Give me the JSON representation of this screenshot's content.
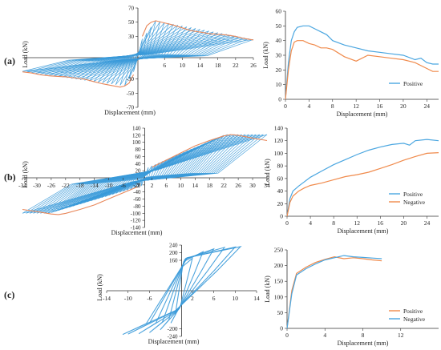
{
  "colors": {
    "hysteresis": "#3a9ad9",
    "envelope": "#e8875a",
    "positive_b": "#4aa6e0",
    "negative_b": "#f08a4b",
    "axis": "#222222"
  },
  "panels": [
    {
      "label": "(a)"
    },
    {
      "label": "(b)"
    },
    {
      "label": "(c)"
    }
  ],
  "chart_data": [
    {
      "id": "a-hysteresis",
      "type": "line",
      "xlabel": "Displacement (mm)",
      "ylabel": "Load (kN)",
      "xticks": [
        "6",
        "10",
        "14",
        "18",
        "22",
        "26"
      ],
      "xlim": [
        -26,
        26
      ],
      "yticks": [
        "70",
        "50",
        "30",
        "-30",
        "-50",
        "-70"
      ],
      "ylim": [
        -70,
        70
      ],
      "envelope": {
        "x": [
          1,
          2,
          3,
          4,
          6,
          8,
          10,
          12,
          14,
          16,
          18,
          20,
          22,
          24,
          26
        ],
        "y": [
          30,
          45,
          50,
          52,
          49,
          46,
          42,
          38,
          36,
          34,
          33,
          32,
          30,
          27,
          25
        ]
      }
    },
    {
      "id": "a-envelope",
      "type": "line",
      "xlabel": "Displacement (mm)",
      "ylabel": "Load (kN)",
      "xticks": [
        "0",
        "4",
        "8",
        "12",
        "16",
        "20",
        "24"
      ],
      "xlim": [
        0,
        26
      ],
      "yticks": [
        "0",
        "10",
        "20",
        "30",
        "40",
        "50",
        "60"
      ],
      "ylim": [
        0,
        60
      ],
      "series": [
        {
          "name": "Positive",
          "x": [
            0,
            0.5,
            1,
            1.5,
            2,
            3,
            4,
            5,
            6,
            7,
            8,
            10,
            12,
            14,
            16,
            18,
            20,
            22,
            23,
            24,
            25,
            26
          ],
          "y": [
            0,
            25,
            40,
            46,
            49,
            50,
            50,
            48,
            46,
            44,
            40,
            37,
            35,
            33,
            32,
            31,
            30,
            27,
            28,
            25,
            24,
            24
          ]
        },
        {
          "name": "",
          "x": [
            0,
            0.5,
            1,
            1.5,
            2,
            3,
            4,
            5,
            6,
            7,
            8,
            10,
            12,
            14,
            16,
            18,
            20,
            22,
            24,
            25,
            26
          ],
          "y": [
            0,
            20,
            33,
            39,
            40,
            40,
            38,
            37,
            35,
            35,
            34,
            29,
            26,
            30,
            29,
            28,
            27,
            25,
            21,
            19,
            19
          ]
        }
      ]
    },
    {
      "id": "b-hysteresis",
      "type": "line",
      "xlabel": "Displacement (mm)",
      "ylabel": "Load (kN)",
      "xticks": [
        "-34",
        "-30",
        "-26",
        "-22",
        "-18",
        "-14",
        "-10",
        "-6",
        "-2",
        "2",
        "6",
        "10",
        "14",
        "18",
        "22",
        "26",
        "30",
        "34"
      ],
      "xlim": [
        -34,
        34
      ],
      "yticks": [
        "140",
        "120",
        "100",
        "80",
        "60",
        "40",
        "20",
        "-20",
        "-40",
        "-60",
        "-80",
        "-100",
        "-120",
        "-140"
      ],
      "ylim": [
        -140,
        140
      ],
      "envelope": {
        "x": [
          2,
          6,
          10,
          14,
          18,
          22,
          24,
          26,
          30,
          34
        ],
        "y": [
          30,
          50,
          70,
          90,
          105,
          118,
          122,
          120,
          112,
          105
        ]
      }
    },
    {
      "id": "b-envelope",
      "type": "line",
      "xlabel": "Displacement (mm)",
      "ylabel": "Load (kN)",
      "xticks": [
        "0",
        "4",
        "8",
        "12",
        "16",
        "20",
        "24"
      ],
      "xlim": [
        0,
        26
      ],
      "yticks": [
        "0",
        "20",
        "40",
        "60",
        "80",
        "100",
        "120",
        "140"
      ],
      "ylim": [
        0,
        140
      ],
      "series": [
        {
          "name": "Positive",
          "x": [
            0,
            0.5,
            1,
            2,
            3,
            4,
            6,
            8,
            10,
            12,
            14,
            16,
            18,
            20,
            21,
            22,
            24,
            26
          ],
          "y": [
            0,
            28,
            40,
            48,
            55,
            62,
            72,
            82,
            90,
            98,
            105,
            110,
            114,
            116,
            113,
            120,
            122,
            120
          ]
        },
        {
          "name": "Negative",
          "x": [
            0,
            0.5,
            1,
            2,
            3,
            4,
            6,
            8,
            10,
            12,
            14,
            16,
            18,
            20,
            22,
            24,
            26
          ],
          "y": [
            0,
            22,
            32,
            40,
            45,
            49,
            53,
            58,
            63,
            66,
            70,
            76,
            82,
            89,
            95,
            100,
            101
          ]
        }
      ]
    },
    {
      "id": "c-hysteresis",
      "type": "line",
      "xlabel": "Displacement (mm)",
      "ylabel": "Load (kN)",
      "xticks": [
        "-14",
        "-10",
        "-6",
        "2",
        "6",
        "10",
        "14"
      ],
      "xlim": [
        -14,
        14
      ],
      "yticks": [
        "240",
        "200",
        "160",
        "-200",
        "-240"
      ],
      "ylim": [
        -240,
        240
      ]
    },
    {
      "id": "c-envelope",
      "type": "line",
      "xlabel": "Displacement (mm)",
      "ylabel": "Load (kN)",
      "xticks": [
        "0",
        "4",
        "8",
        "12"
      ],
      "xlim": [
        0,
        16
      ],
      "yticks": [
        "0",
        "50",
        "100",
        "150",
        "200",
        "250"
      ],
      "ylim": [
        0,
        250
      ],
      "series": [
        {
          "name": "Positive",
          "x": [
            0,
            0.5,
            1,
            2,
            3,
            4,
            5,
            6,
            7,
            8,
            9,
            10
          ],
          "y": [
            0,
            120,
            175,
            195,
            210,
            220,
            228,
            222,
            225,
            222,
            218,
            215
          ]
        },
        {
          "name": "Negative",
          "x": [
            0,
            0.5,
            1,
            2,
            3,
            4,
            5,
            6,
            7,
            8,
            9,
            10
          ],
          "y": [
            0,
            110,
            170,
            190,
            205,
            218,
            225,
            232,
            228,
            226,
            224,
            222
          ]
        }
      ]
    }
  ]
}
